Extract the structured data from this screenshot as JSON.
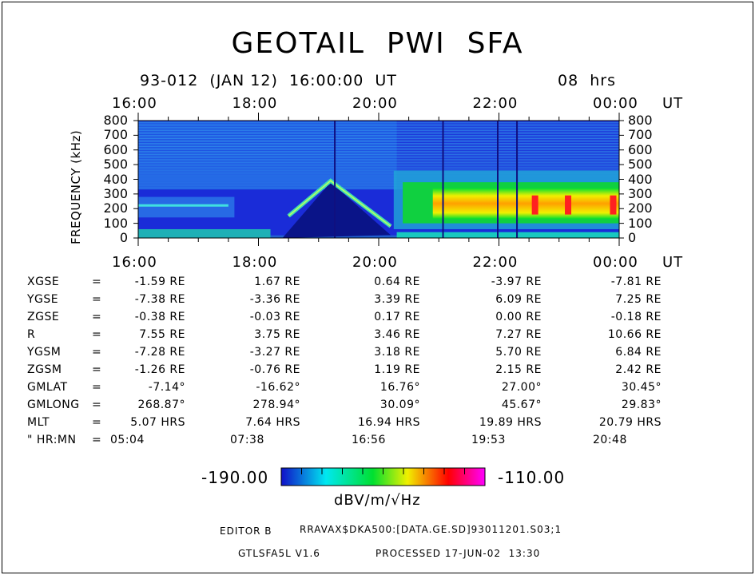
{
  "title": "GEOTAIL  PWI  SFA",
  "header": {
    "date_line": "93-012  (JAN 12)  16:00:00  UT",
    "duration": "08  hrs"
  },
  "top_axis": {
    "ticks": [
      "16:00",
      "18:00",
      "20:00",
      "22:00",
      "00:00"
    ],
    "unit": "UT"
  },
  "bottom_axis": {
    "ticks": [
      "16:00",
      "18:00",
      "20:00",
      "22:00",
      "00:00"
    ],
    "unit": "UT"
  },
  "ylabel": "FREQUENCY (kHz)",
  "chart_data": {
    "type": "heatmap",
    "title": "GEOTAIL  PWI  SFA",
    "xlabel": "",
    "ylabel": "FREQUENCY (kHz)",
    "x_ticks": [
      "16:00",
      "18:00",
      "20:00",
      "22:00",
      "00:00"
    ],
    "y_ticks": [
      0,
      100,
      200,
      300,
      400,
      500,
      600,
      700,
      800
    ],
    "ylim": [
      0,
      800
    ],
    "x_range_hours": [
      16,
      24
    ],
    "colorbar": {
      "min": "-190.00",
      "max": "-110.00",
      "unit": "dBV/m/√Hz",
      "colors": [
        "#1010c8",
        "#00e8f0",
        "#00e030",
        "#f0f000",
        "#ff0000",
        "#ff00ff"
      ]
    },
    "vertical_lines_hours": [
      19.27,
      21.07,
      21.98,
      22.3
    ],
    "features": [
      {
        "name": "rising emission",
        "x": [
          18.5,
          19.2
        ],
        "y": [
          150,
          390
        ]
      },
      {
        "name": "falling emission",
        "x": [
          19.2,
          20.2
        ],
        "y": [
          390,
          80
        ]
      },
      {
        "name": "broadband noise band",
        "x": [
          20.4,
          24.0
        ],
        "y_low": 100,
        "y_high": 380
      }
    ]
  },
  "orbit": {
    "rows": [
      {
        "label": "XGSE",
        "eq": "=",
        "values": [
          "-1.59 RE",
          "1.67 RE",
          "0.64 RE",
          "-3.97 RE",
          "-7.81 RE"
        ]
      },
      {
        "label": "YGSE",
        "eq": "=",
        "values": [
          "-7.38 RE",
          "-3.36 RE",
          "3.39 RE",
          "6.09 RE",
          "7.25 RE"
        ]
      },
      {
        "label": "ZGSE",
        "eq": "=",
        "values": [
          "-0.38 RE",
          "-0.03 RE",
          "0.17 RE",
          "0.00 RE",
          "-0.18 RE"
        ]
      },
      {
        "label": "R",
        "eq": "=",
        "values": [
          "7.55 RE",
          "3.75 RE",
          "3.46 RE",
          "7.27 RE",
          "10.66 RE"
        ]
      },
      {
        "label": "YGSM",
        "eq": "=",
        "values": [
          "-7.28 RE",
          "-3.27 RE",
          "3.18 RE",
          "5.70 RE",
          "6.84 RE"
        ]
      },
      {
        "label": "ZGSM",
        "eq": "=",
        "values": [
          "-1.26 RE",
          "-0.76 RE",
          "1.19 RE",
          "2.15 RE",
          "2.42 RE"
        ]
      },
      {
        "label": "GMLAT",
        "eq": "=",
        "values": [
          "-7.14°",
          "-16.62°",
          "16.76°",
          "27.00°",
          "30.45°"
        ]
      },
      {
        "label": "GMLONG",
        "eq": "=",
        "values": [
          "268.87°",
          "278.94°",
          "30.09°",
          "45.67°",
          "29.83°"
        ]
      },
      {
        "label": "MLT",
        "eq": "=",
        "values": [
          "5.07 HRS",
          "7.64 HRS",
          "16.94 HRS",
          "19.89 HRS",
          "20.79 HRS"
        ]
      },
      {
        "label": "\" HR:MN",
        "eq": "=",
        "values": [
          "05:04",
          "07:38",
          "16:56",
          "19:53",
          "20:48"
        ]
      }
    ]
  },
  "colorbar": {
    "min_label": "-190.00",
    "max_label": "-110.00",
    "unit": "dBV/m/√Hz"
  },
  "footer": {
    "editor": "EDITOR B",
    "path": "RRAVAX$DKA500:[DATA.GE.SD]93011201.S03;1",
    "version": "GTLSFA5L V1.6",
    "processed": "PROCESSED 17-JUN-02  13:30"
  }
}
